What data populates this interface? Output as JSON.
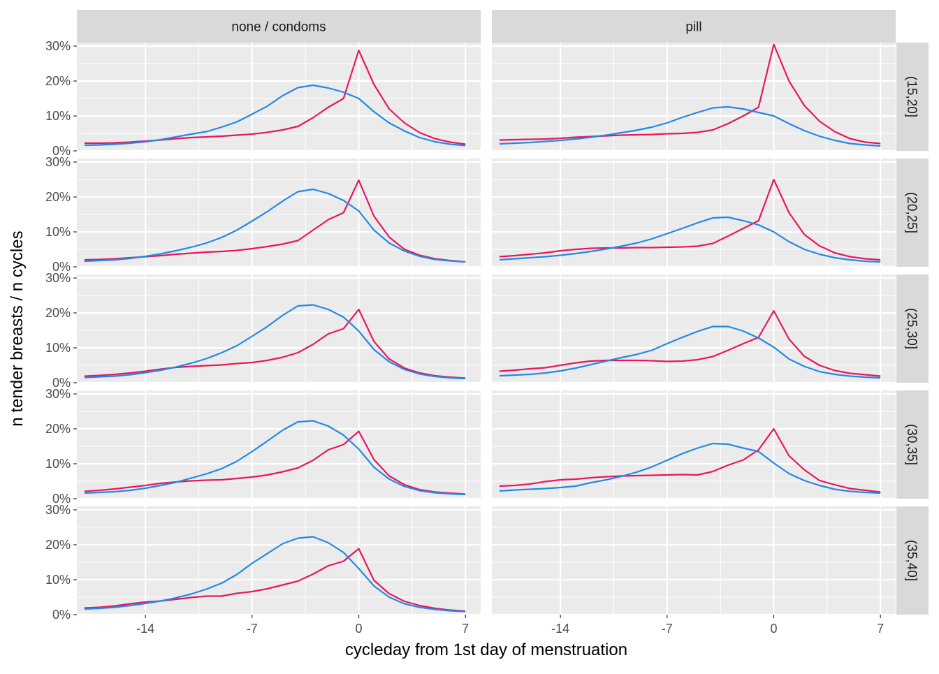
{
  "chart_data": {
    "type": "line",
    "xlabel": "cycleday from 1st day of menstruation",
    "ylabel": "n tender breasts / n cycles",
    "x_ticks": [
      -14,
      -7,
      0,
      7
    ],
    "x_tick_labels": [
      "-14",
      "-7",
      "0",
      "7"
    ],
    "xlim": [
      -18.5,
      8
    ],
    "ylim": [
      0,
      31
    ],
    "y_ticks": [
      0,
      10,
      20,
      30
    ],
    "y_tick_labels": [
      "0%",
      "10%",
      "20%",
      "30%"
    ],
    "grid": true,
    "legend": "none",
    "columns": [
      "none / condoms",
      "pill"
    ],
    "rows": [
      "(15,20]",
      "(20,25]",
      "(25,30]",
      "(30,35]",
      "(35,40]"
    ],
    "series_colors": [
      "#e8175d",
      "#2389e6"
    ],
    "panels": [
      {
        "column": "none / condoms",
        "row": "(15,20]",
        "x": [
          -18,
          -17,
          -16,
          -15,
          -14,
          -13,
          -12,
          -11,
          -10,
          -9,
          -8,
          -7,
          -6,
          -5,
          -4,
          -3,
          -2,
          -1,
          0,
          1,
          2,
          3,
          4,
          5,
          6,
          7
        ],
        "series": [
          {
            "values": [
              2.2,
              2.2,
              2.3,
              2.5,
              2.8,
              3.1,
              3.5,
              3.8,
              4.0,
              4.2,
              4.5,
              4.8,
              5.3,
              6.0,
              7.0,
              9.5,
              12.5,
              15.0,
              28.8,
              19.0,
              12.0,
              8.0,
              5.2,
              3.5,
              2.5,
              1.9
            ]
          },
          {
            "values": [
              1.6,
              1.7,
              1.9,
              2.2,
              2.6,
              3.2,
              4.0,
              4.8,
              5.5,
              6.8,
              8.3,
              10.5,
              12.8,
              15.8,
              18.1,
              18.8,
              18.0,
              16.8,
              15.0,
              11.2,
              8.0,
              5.7,
              3.8,
              2.6,
              1.9,
              1.5
            ]
          }
        ]
      },
      {
        "column": "pill",
        "row": "(15,20]",
        "x": [
          -18,
          -17,
          -16,
          -15,
          -14,
          -13,
          -12,
          -11,
          -10,
          -9,
          -8,
          -7,
          -6,
          -5,
          -4,
          -3,
          -2,
          -1,
          0,
          1,
          2,
          3,
          4,
          5,
          6,
          7
        ],
        "series": [
          {
            "values": [
              3.1,
              3.2,
              3.3,
              3.4,
              3.6,
              3.9,
              4.1,
              4.3,
              4.5,
              4.6,
              4.7,
              4.9,
              5.0,
              5.3,
              6.0,
              7.8,
              10.0,
              12.5,
              30.5,
              20.0,
              13.0,
              8.5,
              5.5,
              3.5,
              2.5,
              2.1
            ]
          },
          {
            "values": [
              2.0,
              2.2,
              2.4,
              2.7,
              3.0,
              3.4,
              3.9,
              4.5,
              5.2,
              5.9,
              6.8,
              8.0,
              9.6,
              11.0,
              12.3,
              12.6,
              12.0,
              11.0,
              10.0,
              7.8,
              5.8,
              4.2,
              3.0,
              2.1,
              1.7,
              1.4
            ]
          }
        ]
      },
      {
        "column": "none / condoms",
        "row": "(20,25]",
        "x": [
          -18,
          -17,
          -16,
          -15,
          -14,
          -13,
          -12,
          -11,
          -10,
          -9,
          -8,
          -7,
          -6,
          -5,
          -4,
          -3,
          -2,
          -1,
          0,
          1,
          2,
          3,
          4,
          5,
          6,
          7
        ],
        "series": [
          {
            "values": [
              2.0,
              2.1,
              2.3,
              2.6,
              2.9,
              3.2,
              3.6,
              3.9,
              4.2,
              4.4,
              4.7,
              5.2,
              5.8,
              6.5,
              7.5,
              10.5,
              13.5,
              15.5,
              24.8,
              14.5,
              8.5,
              5.0,
              3.3,
              2.3,
              1.8,
              1.4
            ]
          },
          {
            "values": [
              1.6,
              1.8,
              2.0,
              2.4,
              3.0,
              3.7,
              4.6,
              5.6,
              6.8,
              8.4,
              10.5,
              13.1,
              15.8,
              18.8,
              21.5,
              22.2,
              21.0,
              19.0,
              16.0,
              10.5,
              6.8,
              4.5,
              3.0,
              2.1,
              1.7,
              1.4
            ]
          }
        ]
      },
      {
        "column": "pill",
        "row": "(20,25]",
        "x": [
          -18,
          -17,
          -16,
          -15,
          -14,
          -13,
          -12,
          -11,
          -10,
          -9,
          -8,
          -7,
          -6,
          -5,
          -4,
          -3,
          -2,
          -1,
          0,
          1,
          2,
          3,
          4,
          5,
          6,
          7
        ],
        "series": [
          {
            "values": [
              2.9,
              3.2,
              3.6,
              4.0,
              4.6,
              5.0,
              5.3,
              5.4,
              5.4,
              5.5,
              5.5,
              5.6,
              5.7,
              5.9,
              6.7,
              8.8,
              11.0,
              13.2,
              25.0,
              15.5,
              9.3,
              6.0,
              4.0,
              2.9,
              2.3,
              2.0
            ]
          },
          {
            "values": [
              2.0,
              2.3,
              2.6,
              2.9,
              3.3,
              3.8,
              4.4,
              5.1,
              5.9,
              6.8,
              8.0,
              9.5,
              11.0,
              12.6,
              14.0,
              14.2,
              13.2,
              12.0,
              10.0,
              7.2,
              5.0,
              3.6,
              2.6,
              2.0,
              1.6,
              1.4
            ]
          }
        ]
      },
      {
        "column": "none / condoms",
        "row": "(25,30]",
        "x": [
          -18,
          -17,
          -16,
          -15,
          -14,
          -13,
          -12,
          -11,
          -10,
          -9,
          -8,
          -7,
          -6,
          -5,
          -4,
          -3,
          -2,
          -1,
          0,
          1,
          2,
          3,
          4,
          5,
          6,
          7
        ],
        "series": [
          {
            "values": [
              1.9,
              2.1,
              2.4,
              2.8,
              3.3,
              3.9,
              4.4,
              4.7,
              4.9,
              5.1,
              5.5,
              5.8,
              6.4,
              7.3,
              8.6,
              11.0,
              14.0,
              15.5,
              21.0,
              11.8,
              6.8,
              4.2,
              2.8,
              2.0,
              1.6,
              1.3
            ]
          },
          {
            "values": [
              1.5,
              1.7,
              1.9,
              2.3,
              2.9,
              3.6,
              4.5,
              5.6,
              6.9,
              8.6,
              10.6,
              13.3,
              16.1,
              19.3,
              22.0,
              22.3,
              21.0,
              18.8,
              14.8,
              9.5,
              6.0,
              3.8,
              2.5,
              1.8,
              1.4,
              1.2
            ]
          }
        ]
      },
      {
        "column": "pill",
        "row": "(25,30]",
        "x": [
          -18,
          -17,
          -16,
          -15,
          -14,
          -13,
          -12,
          -11,
          -10,
          -9,
          -8,
          -7,
          -6,
          -5,
          -4,
          -3,
          -2,
          -1,
          0,
          1,
          2,
          3,
          4,
          5,
          6,
          7
        ],
        "series": [
          {
            "values": [
              3.3,
              3.6,
              4.0,
              4.3,
              5.0,
              5.7,
              6.2,
              6.4,
              6.4,
              6.4,
              6.3,
              6.1,
              6.2,
              6.6,
              7.5,
              9.3,
              11.2,
              13.0,
              20.6,
              12.5,
              7.6,
              5.0,
              3.5,
              2.7,
              2.3,
              1.9
            ]
          },
          {
            "values": [
              2.0,
              2.2,
              2.4,
              2.8,
              3.4,
              4.2,
              5.2,
              6.2,
              7.2,
              8.1,
              9.3,
              11.2,
              13.0,
              14.7,
              16.1,
              16.1,
              14.8,
              12.8,
              10.2,
              6.8,
              4.7,
              3.2,
              2.4,
              1.9,
              1.6,
              1.4
            ]
          }
        ]
      },
      {
        "column": "none / condoms",
        "row": "(30,35]",
        "x": [
          -18,
          -17,
          -16,
          -15,
          -14,
          -13,
          -12,
          -11,
          -10,
          -9,
          -8,
          -7,
          -6,
          -5,
          -4,
          -3,
          -2,
          -1,
          0,
          1,
          2,
          3,
          4,
          5,
          6,
          7
        ],
        "series": [
          {
            "values": [
              2.1,
              2.4,
              2.8,
              3.3,
              3.8,
              4.4,
              4.8,
              5.1,
              5.3,
              5.4,
              5.8,
              6.2,
              6.8,
              7.7,
              8.8,
              11.0,
              14.0,
              15.5,
              19.3,
              11.2,
              6.5,
              4.0,
              2.6,
              1.9,
              1.6,
              1.3
            ]
          },
          {
            "values": [
              1.6,
              1.8,
              2.0,
              2.4,
              3.0,
              3.8,
              4.7,
              5.9,
              7.1,
              8.6,
              10.7,
              13.5,
              16.5,
              19.6,
              22.0,
              22.3,
              20.8,
              18.2,
              14.2,
              9.0,
              5.6,
              3.5,
              2.3,
              1.7,
              1.4,
              1.2
            ]
          }
        ]
      },
      {
        "column": "pill",
        "row": "(30,35]",
        "x": [
          -18,
          -17,
          -16,
          -15,
          -14,
          -13,
          -12,
          -11,
          -10,
          -9,
          -8,
          -7,
          -6,
          -5,
          -4,
          -3,
          -2,
          -1,
          0,
          1,
          2,
          3,
          4,
          5,
          6,
          7
        ],
        "series": [
          {
            "values": [
              3.6,
              3.8,
              4.2,
              4.9,
              5.4,
              5.6,
              6.0,
              6.3,
              6.5,
              6.6,
              6.7,
              6.8,
              6.9,
              6.8,
              7.8,
              9.6,
              11.1,
              14.0,
              20.0,
              12.3,
              8.3,
              5.2,
              4.0,
              2.9,
              2.4,
              1.9
            ]
          },
          {
            "values": [
              2.2,
              2.5,
              2.7,
              2.9,
              3.2,
              3.6,
              4.6,
              5.4,
              6.4,
              7.6,
              9.1,
              11.0,
              12.9,
              14.5,
              15.8,
              15.6,
              14.5,
              13.5,
              10.2,
              7.2,
              5.2,
              3.8,
              2.7,
              2.1,
              1.8,
              1.6
            ]
          }
        ]
      },
      {
        "column": "none / condoms",
        "row": "(35,40]",
        "x": [
          -18,
          -17,
          -16,
          -15,
          -14,
          -13,
          -12,
          -11,
          -10,
          -9,
          -8,
          -7,
          -6,
          -5,
          -4,
          -3,
          -2,
          -1,
          0,
          1,
          2,
          3,
          4,
          5,
          6,
          7
        ],
        "series": [
          {
            "values": [
              1.9,
              2.1,
              2.5,
              3.1,
              3.6,
              3.9,
              4.4,
              4.9,
              5.3,
              5.3,
              6.1,
              6.6,
              7.4,
              8.5,
              9.6,
              11.6,
              14.0,
              15.3,
              18.9,
              9.8,
              6.0,
              3.8,
              2.6,
              1.8,
              1.3,
              1.0
            ]
          },
          {
            "values": [
              1.6,
              1.8,
              2.1,
              2.6,
              3.2,
              3.9,
              4.8,
              5.9,
              7.3,
              9.0,
              11.5,
              14.7,
              17.5,
              20.3,
              21.9,
              22.3,
              20.6,
              17.8,
              13.2,
              8.2,
              5.0,
              3.1,
              2.1,
              1.5,
              1.1,
              0.9
            ]
          }
        ]
      },
      {
        "column": "pill",
        "row": "(35,40]",
        "x": [],
        "series": []
      }
    ]
  }
}
